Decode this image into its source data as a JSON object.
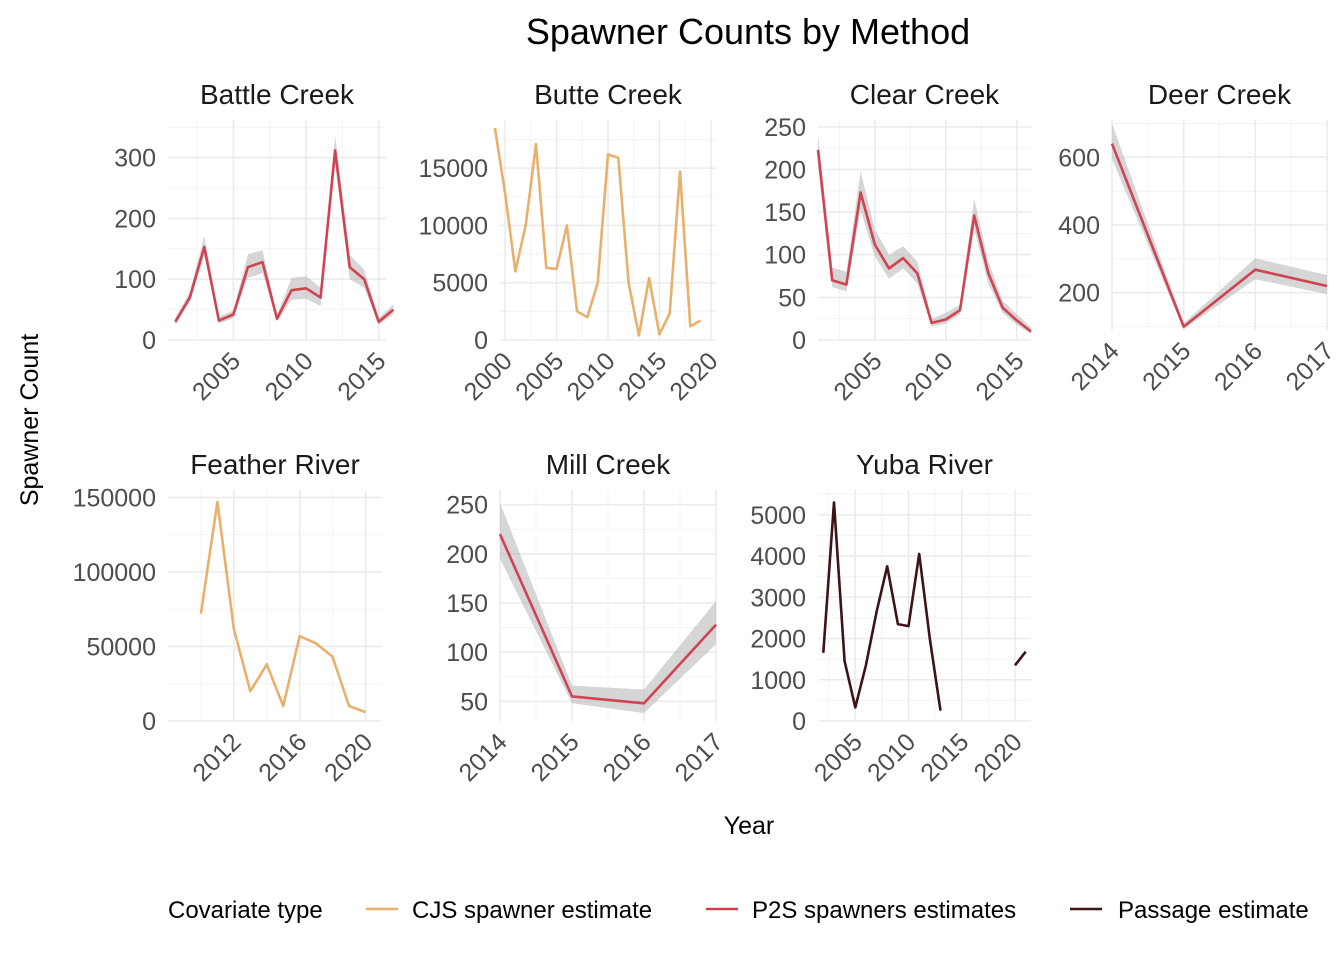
{
  "chart_title": "Spawner Counts by Method",
  "x_axis_title": "Year",
  "y_axis_title": "Spawner Count",
  "legend": {
    "title": "Covariate type",
    "position": "bottom",
    "items": [
      {
        "key": "cjs",
        "label": "CJS spawner estimate",
        "color": "#E8B06C"
      },
      {
        "key": "p2s",
        "label": "P2S spawners estimates",
        "color": "#CF4450"
      },
      {
        "key": "pas",
        "label": "Passage estimate",
        "color": "#3D1416"
      }
    ]
  },
  "colors": {
    "ribbon": "#bdbdbd"
  },
  "chart_data": [
    {
      "type": "line",
      "facet": "Battle Creek",
      "xlim": [
        2000.5,
        2015.5
      ],
      "ylim": [
        0,
        362
      ],
      "x_ticks": [
        2005,
        2010,
        2015
      ],
      "y_ticks": [
        0,
        100,
        200,
        300
      ],
      "series": [
        {
          "key": "p2s",
          "ribbon": true,
          "x": [
            2001,
            2002,
            2003,
            2004,
            2005,
            2006,
            2007,
            2008,
            2009,
            2010,
            2011,
            2012,
            2013,
            2014,
            2015,
            2016
          ],
          "y": [
            30,
            70,
            153,
            32,
            42,
            120,
            128,
            35,
            82,
            85,
            70,
            312,
            120,
            100,
            30,
            50
          ],
          "lower": [
            25,
            62,
            137,
            27,
            36,
            102,
            110,
            30,
            66,
            68,
            56,
            290,
            100,
            86,
            25,
            42
          ],
          "upper": [
            36,
            79,
            171,
            38,
            49,
            141,
            148,
            41,
            102,
            105,
            86,
            336,
            140,
            116,
            36,
            59
          ]
        }
      ]
    },
    {
      "type": "line",
      "facet": "Butte Creek",
      "xlim": [
        1999.5,
        2020.5
      ],
      "ylim": [
        0,
        19200
      ],
      "x_ticks": [
        2000,
        2005,
        2010,
        2015,
        2020
      ],
      "y_ticks": [
        0,
        5000,
        10000,
        15000
      ],
      "series": [
        {
          "key": "cjs",
          "x": [
            1999,
            2000,
            2001,
            2002,
            2003,
            2004,
            2005,
            2006,
            2007,
            2008,
            2009,
            2010,
            2011,
            2012,
            2013,
            2014,
            2015,
            2016,
            2017,
            2018,
            2019
          ],
          "y": [
            18500,
            12800,
            6000,
            10000,
            17100,
            6300,
            6200,
            10000,
            2500,
            2000,
            5000,
            16200,
            15900,
            5000,
            400,
            5400,
            500,
            2300,
            14700,
            1200,
            1700
          ]
        }
      ]
    },
    {
      "type": "line",
      "facet": "Clear Creek",
      "xlim": [
        2001,
        2016
      ],
      "ylim": [
        0,
        258
      ],
      "x_ticks": [
        2005,
        2010,
        2015
      ],
      "y_ticks": [
        0,
        50,
        100,
        150,
        200,
        250
      ],
      "series": [
        {
          "key": "p2s",
          "ribbon": true,
          "x": [
            2001,
            2002,
            2003,
            2004,
            2005,
            2006,
            2007,
            2008,
            2009,
            2010,
            2011,
            2012,
            2013,
            2014,
            2015,
            2016
          ],
          "y": [
            223,
            70,
            65,
            173,
            112,
            84,
            96,
            78,
            20,
            24,
            35,
            146,
            78,
            38,
            23,
            10
          ],
          "lower": [
            205,
            62,
            57,
            152,
            98,
            72,
            84,
            66,
            16,
            19,
            30,
            130,
            66,
            32,
            18,
            7
          ],
          "upper": [
            241,
            85,
            80,
            198,
            130,
            100,
            110,
            92,
            25,
            32,
            41,
            166,
            92,
            46,
            30,
            15
          ]
        }
      ]
    },
    {
      "type": "line",
      "facet": "Deer Creek",
      "xlim": [
        2014,
        2017
      ],
      "ylim": [
        90,
        710
      ],
      "x_ticks": [
        2014,
        2015,
        2016,
        2017
      ],
      "y_ticks": [
        200,
        400,
        600
      ],
      "series": [
        {
          "key": "p2s",
          "ribbon": true,
          "x": [
            2014,
            2015,
            2016,
            2017
          ],
          "y": [
            640,
            100,
            268,
            220
          ],
          "lower": [
            595,
            92,
            240,
            196
          ],
          "upper": [
            700,
            110,
            302,
            252
          ]
        }
      ]
    },
    {
      "type": "line",
      "facet": "Feather River",
      "xlim": [
        2008,
        2021
      ],
      "ylim": [
        0,
        155000
      ],
      "x_ticks": [
        2012,
        2016,
        2020
      ],
      "y_ticks": [
        0,
        50000,
        100000,
        150000
      ],
      "series": [
        {
          "key": "cjs",
          "x": [
            2010,
            2011,
            2012,
            2013,
            2014,
            2015,
            2016,
            2017,
            2018,
            2019,
            2020
          ],
          "y": [
            72000,
            147000,
            62000,
            20000,
            38000,
            10000,
            57000,
            52000,
            43000,
            10000,
            6000
          ]
        }
      ]
    },
    {
      "type": "line",
      "facet": "Mill Creek",
      "xlim": [
        2014,
        2017
      ],
      "ylim": [
        30,
        265
      ],
      "x_ticks": [
        2014,
        2015,
        2016,
        2017
      ],
      "y_ticks": [
        50,
        100,
        150,
        200,
        250
      ],
      "series": [
        {
          "key": "p2s",
          "ribbon": true,
          "x": [
            2014,
            2015,
            2016,
            2017
          ],
          "y": [
            220,
            55,
            48,
            128
          ],
          "lower": [
            195,
            48,
            38,
            108
          ],
          "upper": [
            252,
            66,
            62,
            152
          ]
        }
      ]
    },
    {
      "type": "line",
      "facet": "Yuba River",
      "xlim": [
        2001.5,
        2021.5
      ],
      "ylim": [
        0,
        5600
      ],
      "x_ticks": [
        2005,
        2010,
        2015,
        2020
      ],
      "y_ticks": [
        0,
        1000,
        2000,
        3000,
        4000,
        5000
      ],
      "series": [
        {
          "key": "pas",
          "x": [
            2002,
            2003,
            2004,
            2005,
            2006,
            2007,
            2008,
            2009,
            2010,
            2011,
            2012,
            2013
          ],
          "y": [
            1650,
            5300,
            1450,
            330,
            1350,
            2650,
            3750,
            2350,
            2300,
            4050,
            2000,
            250
          ]
        },
        {
          "key": "pas",
          "x": [
            2020,
            2021
          ],
          "y": [
            1350,
            1680
          ]
        }
      ]
    }
  ]
}
